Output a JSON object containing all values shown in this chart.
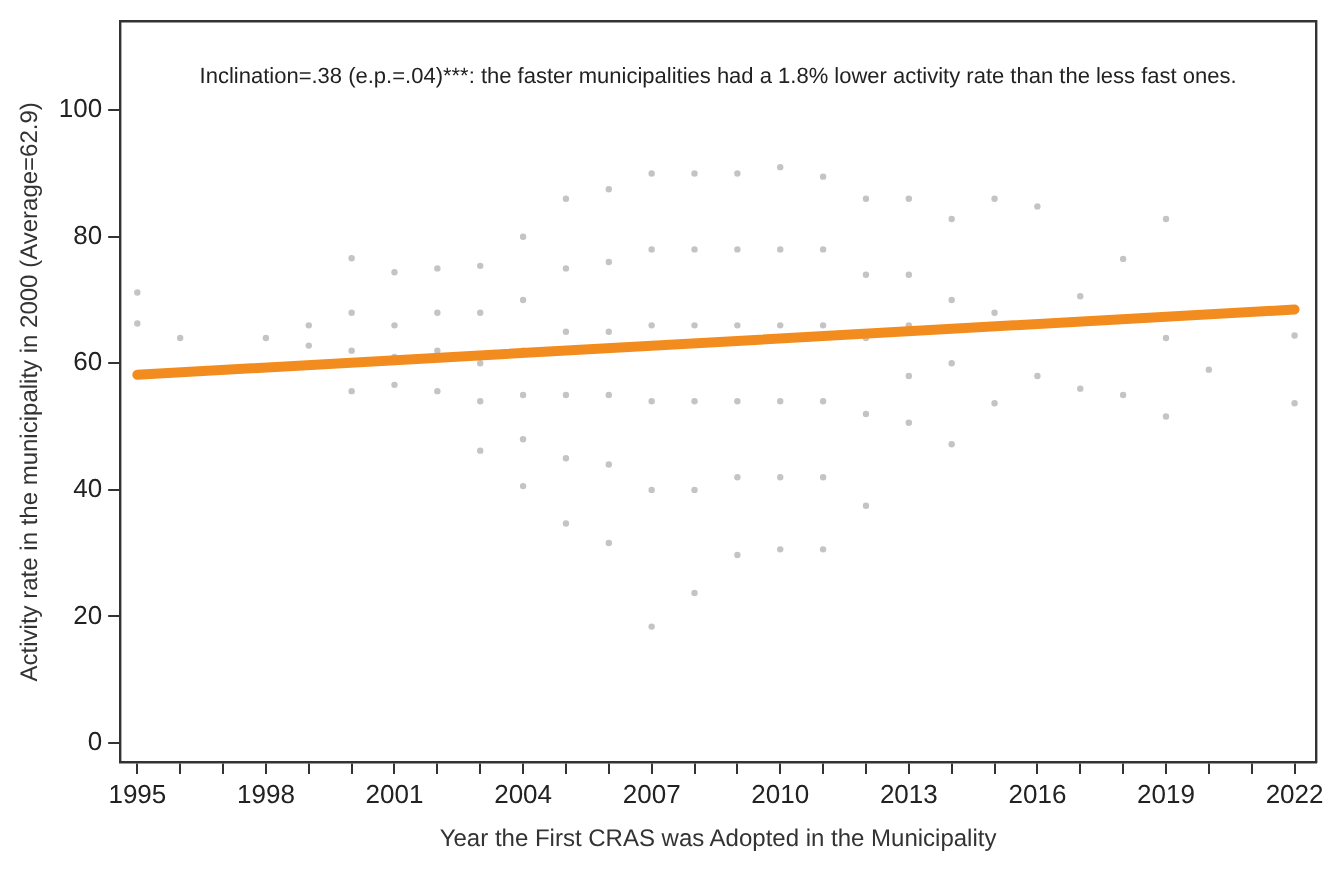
{
  "chart_data": {
    "type": "scatter",
    "xlabel": "Year the First CRAS was Adopted in the Municipality",
    "ylabel": "Activity rate in the municipality in 2000 (Average=62.9)",
    "annotations": [
      "Inclination=.38 (e.p.=.04)***: the faster municipalities had a 1.8% lower activity rate than the less fast ones."
    ],
    "xlim": [
      1994.6,
      2022.5
    ],
    "ylim": [
      -3,
      114
    ],
    "xticks": [
      1995,
      {
        "value": 1996,
        "label": null
      },
      {
        "value": 1997,
        "label": null
      },
      1998,
      {
        "value": 1999,
        "label": null
      },
      {
        "value": 2000,
        "label": null
      },
      2001,
      {
        "value": 2002,
        "label": null
      },
      {
        "value": 2003,
        "label": null
      },
      2004,
      {
        "value": 2005,
        "label": null
      },
      {
        "value": 2006,
        "label": null
      },
      2007,
      {
        "value": 2008,
        "label": null
      },
      {
        "value": 2009,
        "label": null
      },
      2010,
      {
        "value": 2011,
        "label": null
      },
      {
        "value": 2012,
        "label": null
      },
      2013,
      {
        "value": 2014,
        "label": null
      },
      {
        "value": 2015,
        "label": null
      },
      2016,
      {
        "value": 2017,
        "label": null
      },
      {
        "value": 2018,
        "label": null
      },
      2019,
      {
        "value": 2020,
        "label": null
      },
      {
        "value": 2021,
        "label": null
      },
      2022
    ],
    "yticks": [
      0,
      20,
      40,
      60,
      80,
      100
    ],
    "grid": false,
    "legend": false,
    "marker": "circle",
    "series": [
      {
        "color": "#c4c4c4",
        "x": [
          1995,
          1995,
          1996,
          1998,
          1999,
          1999,
          2000,
          2000,
          2000,
          2000,
          2001,
          2001,
          2001,
          2001,
          2002,
          2002,
          2002,
          2002,
          2003,
          2003,
          2003,
          2003,
          2003,
          2004,
          2004,
          2004,
          2004,
          2004,
          2004,
          2005,
          2005,
          2005,
          2005,
          2005,
          2005,
          2006,
          2006,
          2006,
          2006,
          2006,
          2006,
          2007,
          2007,
          2007,
          2007,
          2007,
          2007,
          2008,
          2008,
          2008,
          2008,
          2008,
          2008,
          2009,
          2009,
          2009,
          2009,
          2009,
          2009,
          2010,
          2010,
          2010,
          2010,
          2010,
          2010,
          2011,
          2011,
          2011,
          2011,
          2011,
          2011,
          2012,
          2012,
          2012,
          2012,
          2012,
          2013,
          2013,
          2013,
          2013,
          2013,
          2014,
          2014,
          2014,
          2014,
          2015,
          2015,
          2015,
          2016,
          2016,
          2017,
          2017,
          2018,
          2018,
          2019,
          2019,
          2019,
          2020,
          2022,
          2022
        ],
        "values": [
          71.2,
          66.3,
          64,
          64,
          66,
          62.8,
          76.6,
          68,
          62,
          55.6,
          74.4,
          66,
          61,
          56.6,
          75,
          68,
          62,
          55.6,
          75.4,
          68,
          60,
          54,
          46.2,
          80,
          70,
          62,
          55,
          48,
          40.6,
          86,
          75,
          65,
          55,
          45,
          34.7,
          87.5,
          76,
          65,
          55,
          44,
          31.6,
          90,
          78,
          66,
          54,
          40,
          18.4,
          90,
          78,
          66,
          54,
          40,
          23.7,
          90,
          78,
          66,
          54,
          42,
          29.7,
          91,
          78,
          66,
          54,
          42,
          30.6,
          89.5,
          78,
          66,
          54,
          42,
          30.6,
          86,
          74,
          64,
          52,
          37.5,
          86,
          74,
          66,
          58,
          50.6,
          82.8,
          70,
          60,
          47.2,
          86,
          68,
          53.7,
          84.8,
          58,
          70.6,
          56,
          76.5,
          55,
          82.8,
          64,
          51.6,
          59,
          64.4,
          53.7
        ]
      },
      {
        "type": "line",
        "color": "#f28c1e",
        "line_style": "solid",
        "marker": "none",
        "x": [
          1995,
          2022
        ],
        "values": [
          58.2,
          68.5
        ]
      }
    ]
  }
}
